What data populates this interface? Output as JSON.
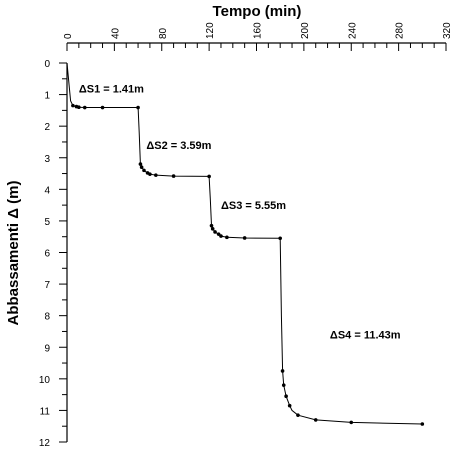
{
  "chart_data": {
    "type": "line",
    "title": "",
    "xlabel": "Tempo (min)",
    "ylabel": "Abbassamenti Δ (m)",
    "x_axis_position": "top",
    "y_axis_inverted": true,
    "xlim": [
      0,
      320
    ],
    "ylim": [
      0,
      12
    ],
    "x_ticks": [
      "0",
      "40",
      "80",
      "120",
      "160",
      "200",
      "240",
      "280",
      "320"
    ],
    "y_ticks": [
      "0",
      "1",
      "2",
      "3",
      "4",
      "5",
      "6",
      "7",
      "8",
      "9",
      "10",
      "11",
      "12"
    ],
    "grid": false,
    "series": [
      {
        "x": [
          0.0,
          1.0,
          2.0,
          3.0,
          5.0,
          8.0,
          10.0,
          15.0,
          30.0,
          60.0,
          61.0,
          62.0,
          63.0,
          65.0,
          68.0,
          70.0,
          75.0,
          90.0,
          120.0,
          121.0,
          122.0,
          123.0,
          125.0,
          128.0,
          130.0,
          135.0,
          150.0,
          180.0,
          181.0,
          182.0,
          183.0,
          185.0,
          188.0,
          190.0,
          195.0,
          210.0,
          240.0,
          300.0
        ],
        "y": [
          0.0,
          0.4,
          0.8,
          1.2,
          1.35,
          1.38,
          1.4,
          1.41,
          1.41,
          1.41,
          2.2,
          3.2,
          3.3,
          3.4,
          3.48,
          3.52,
          3.55,
          3.58,
          3.59,
          4.3,
          5.15,
          5.25,
          5.35,
          5.42,
          5.48,
          5.52,
          5.54,
          5.55,
          8.0,
          9.75,
          10.2,
          10.55,
          10.85,
          11.0,
          11.15,
          11.3,
          11.38,
          11.43
        ],
        "markers": [
          false,
          false,
          false,
          false,
          true,
          true,
          true,
          true,
          true,
          true,
          false,
          true,
          true,
          true,
          true,
          true,
          true,
          true,
          true,
          false,
          true,
          true,
          true,
          true,
          true,
          true,
          true,
          true,
          false,
          true,
          true,
          true,
          true,
          false,
          true,
          true,
          true,
          true
        ]
      }
    ],
    "annotations": [
      {
        "text": "ΔS1 = 1.41m",
        "x": 10,
        "y": 0.8
      },
      {
        "text": "ΔS2 = 3.59m",
        "x": 67,
        "y": 2.6
      },
      {
        "text": "ΔS3 = 5.55m",
        "x": 130,
        "y": 4.5
      },
      {
        "text": "ΔS4 = 11.43m",
        "x": 222,
        "y": 8.6
      }
    ]
  }
}
